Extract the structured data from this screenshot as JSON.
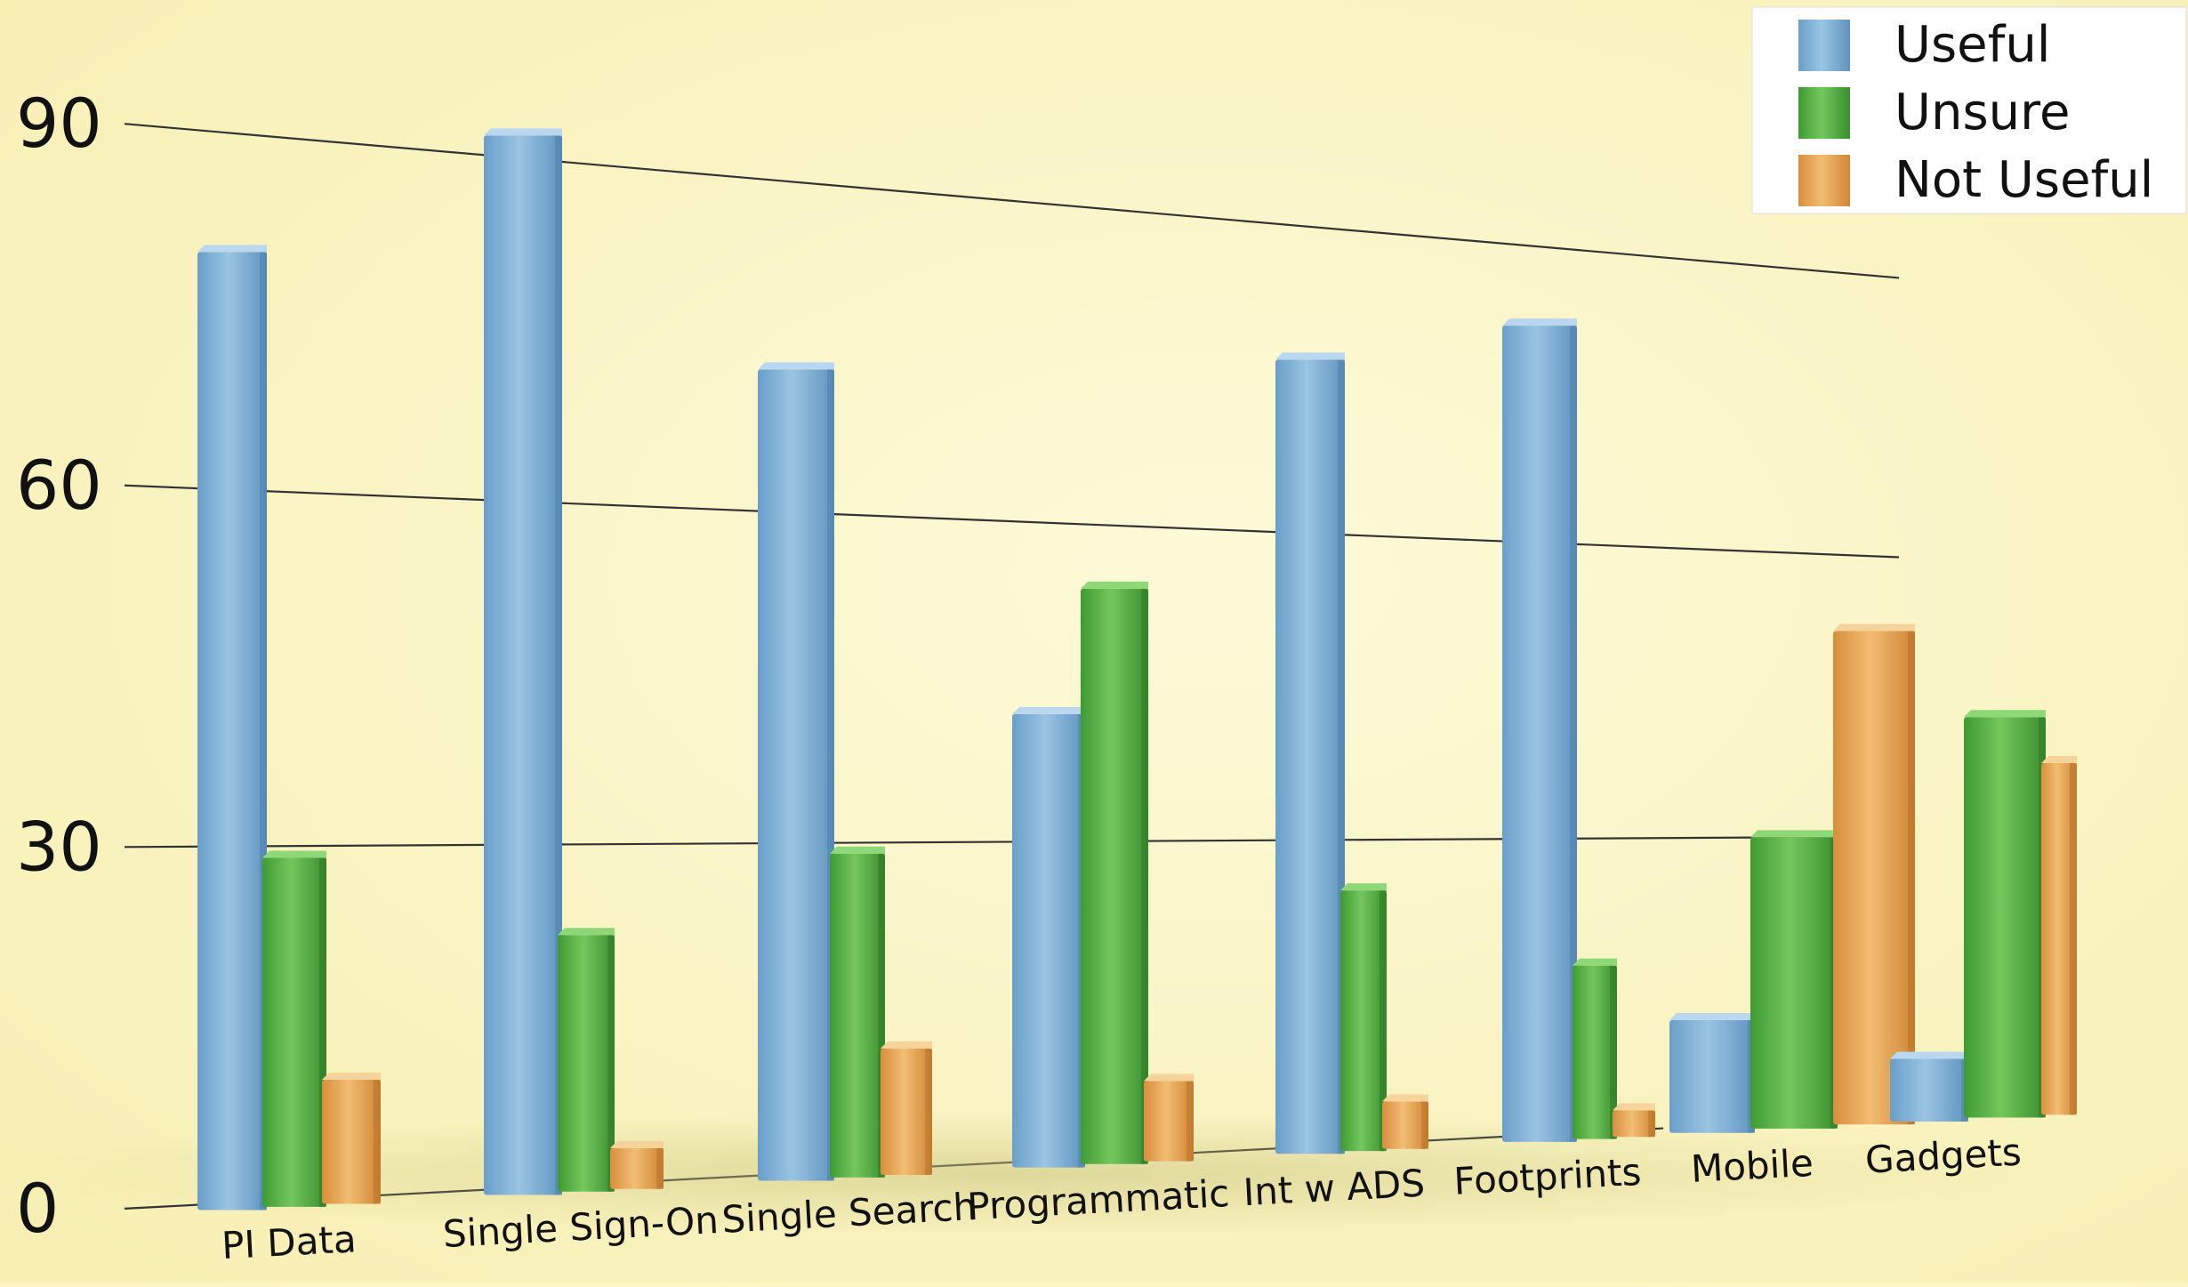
{
  "chart_data": {
    "type": "bar",
    "title": "",
    "xlabel": "",
    "ylabel": "",
    "ylim": [
      0,
      90
    ],
    "yticks": [
      0,
      30,
      60,
      90
    ],
    "grid": true,
    "legend_position": "top-right",
    "categories": [
      "PI Data",
      "Single Sign-On",
      "Single Search",
      "Programmatic",
      "Int w ADS",
      "Footprints",
      "Mobile",
      "Gadgets"
    ],
    "series": [
      {
        "name": "Useful",
        "color": "#7fb0d6",
        "values": [
          80,
          92,
          73,
          42,
          77,
          82,
          11,
          6
        ]
      },
      {
        "name": "Unsure",
        "color": "#5cb54a",
        "values": [
          29,
          22,
          29,
          54,
          25,
          17,
          30,
          43
        ]
      },
      {
        "name": "Not Useful",
        "color": "#e9a85a",
        "values": [
          10,
          3,
          11,
          7,
          4,
          2,
          52,
          38
        ]
      }
    ]
  }
}
